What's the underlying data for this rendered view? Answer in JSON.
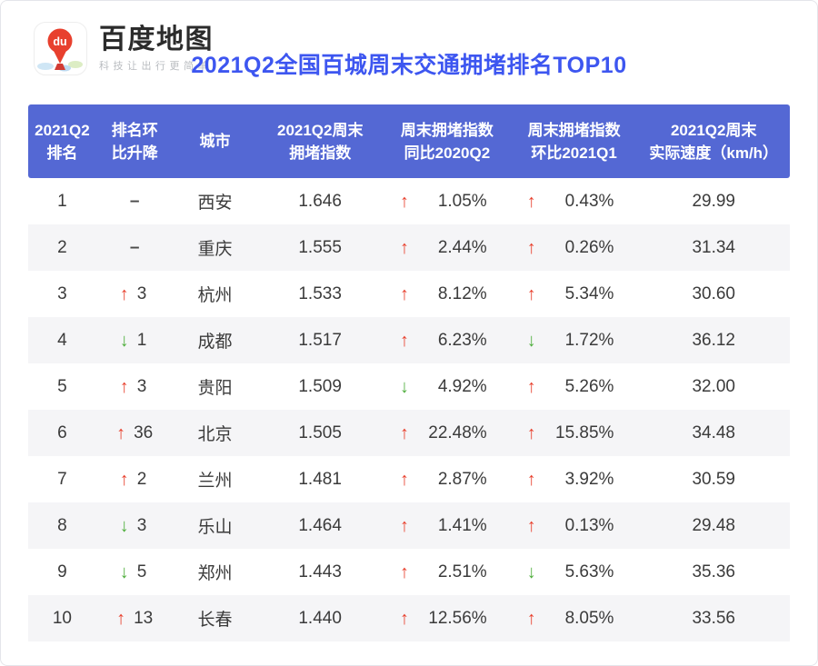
{
  "brand": {
    "name": "百度地图",
    "tagline": "科技让出行更简单",
    "pin_label": "du"
  },
  "title": "2021Q2全国百城周末交通拥堵排名TOP10",
  "icons": {
    "up_arrow": "↑",
    "down_arrow": "↓",
    "no_change_dash": "–"
  },
  "colors": {
    "header_bg": "#5468d4",
    "title_blue": "#3d56f0",
    "up_red": "#e8412e",
    "down_green": "#4fae3d",
    "alt_row_bg": "#f5f5f7",
    "pin_red": "#e8402e"
  },
  "table": {
    "header": [
      [
        "2021Q2",
        "排名"
      ],
      [
        "排名环",
        "比升降"
      ],
      [
        "城市"
      ],
      [
        "2021Q2周末",
        "拥堵指数"
      ],
      [
        "周末拥堵指数",
        "同比2020Q2"
      ],
      [
        "周末拥堵指数",
        "环比2021Q1"
      ],
      [
        "2021Q2周末",
        "实际速度（km/h）"
      ]
    ],
    "rows": [
      {
        "rank": "1",
        "change_dir": "none",
        "change": "–",
        "city": "西安",
        "index": "1.646",
        "yoy_dir": "up",
        "yoy": "1.05%",
        "mom_dir": "up",
        "mom": "0.43%",
        "speed": "29.99"
      },
      {
        "rank": "2",
        "change_dir": "none",
        "change": "–",
        "city": "重庆",
        "index": "1.555",
        "yoy_dir": "up",
        "yoy": "2.44%",
        "mom_dir": "up",
        "mom": "0.26%",
        "speed": "31.34"
      },
      {
        "rank": "3",
        "change_dir": "up",
        "change": "3",
        "city": "杭州",
        "index": "1.533",
        "yoy_dir": "up",
        "yoy": "8.12%",
        "mom_dir": "up",
        "mom": "5.34%",
        "speed": "30.60"
      },
      {
        "rank": "4",
        "change_dir": "down",
        "change": "1",
        "city": "成都",
        "index": "1.517",
        "yoy_dir": "up",
        "yoy": "6.23%",
        "mom_dir": "down",
        "mom": "1.72%",
        "speed": "36.12"
      },
      {
        "rank": "5",
        "change_dir": "up",
        "change": "3",
        "city": "贵阳",
        "index": "1.509",
        "yoy_dir": "down",
        "yoy": "4.92%",
        "mom_dir": "up",
        "mom": "5.26%",
        "speed": "32.00"
      },
      {
        "rank": "6",
        "change_dir": "up",
        "change": "36",
        "city": "北京",
        "index": "1.505",
        "yoy_dir": "up",
        "yoy": "22.48%",
        "mom_dir": "up",
        "mom": "15.85%",
        "speed": "34.48"
      },
      {
        "rank": "7",
        "change_dir": "up",
        "change": "2",
        "city": "兰州",
        "index": "1.481",
        "yoy_dir": "up",
        "yoy": "2.87%",
        "mom_dir": "up",
        "mom": "3.92%",
        "speed": "30.59"
      },
      {
        "rank": "8",
        "change_dir": "down",
        "change": "3",
        "city": "乐山",
        "index": "1.464",
        "yoy_dir": "up",
        "yoy": "1.41%",
        "mom_dir": "up",
        "mom": "0.13%",
        "speed": "29.48"
      },
      {
        "rank": "9",
        "change_dir": "down",
        "change": "5",
        "city": "郑州",
        "index": "1.443",
        "yoy_dir": "up",
        "yoy": "2.51%",
        "mom_dir": "down",
        "mom": "5.63%",
        "speed": "35.36"
      },
      {
        "rank": "10",
        "change_dir": "up",
        "change": "13",
        "city": "长春",
        "index": "1.440",
        "yoy_dir": "up",
        "yoy": "12.56%",
        "mom_dir": "up",
        "mom": "8.05%",
        "speed": "33.56"
      }
    ]
  },
  "chart_data": {
    "type": "table",
    "title": "2021Q2全国百城周末交通拥堵排名TOP10",
    "columns": [
      "2021Q2排名",
      "排名环比升降",
      "城市",
      "2021Q2周末拥堵指数",
      "周末拥堵指数同比2020Q2",
      "周末拥堵指数环比2021Q1",
      "2021Q2周末实际速度（km/h）"
    ],
    "rows": [
      [
        1,
        "0",
        "西安",
        1.646,
        "+1.05%",
        "+0.43%",
        29.99
      ],
      [
        2,
        "0",
        "重庆",
        1.555,
        "+2.44%",
        "+0.26%",
        31.34
      ],
      [
        3,
        "+3",
        "杭州",
        1.533,
        "+8.12%",
        "+5.34%",
        30.6
      ],
      [
        4,
        "-1",
        "成都",
        1.517,
        "+6.23%",
        "-1.72%",
        36.12
      ],
      [
        5,
        "+3",
        "贵阳",
        1.509,
        "-4.92%",
        "+5.26%",
        32.0
      ],
      [
        6,
        "+36",
        "北京",
        1.505,
        "+22.48%",
        "+15.85%",
        34.48
      ],
      [
        7,
        "+2",
        "兰州",
        1.481,
        "+2.87%",
        "+3.92%",
        30.59
      ],
      [
        8,
        "-3",
        "乐山",
        1.464,
        "+1.41%",
        "+0.13%",
        29.48
      ],
      [
        9,
        "-5",
        "郑州",
        1.443,
        "+2.51%",
        "-5.63%",
        35.36
      ],
      [
        10,
        "+13",
        "长春",
        1.44,
        "+12.56%",
        "+8.05%",
        33.56
      ]
    ]
  }
}
